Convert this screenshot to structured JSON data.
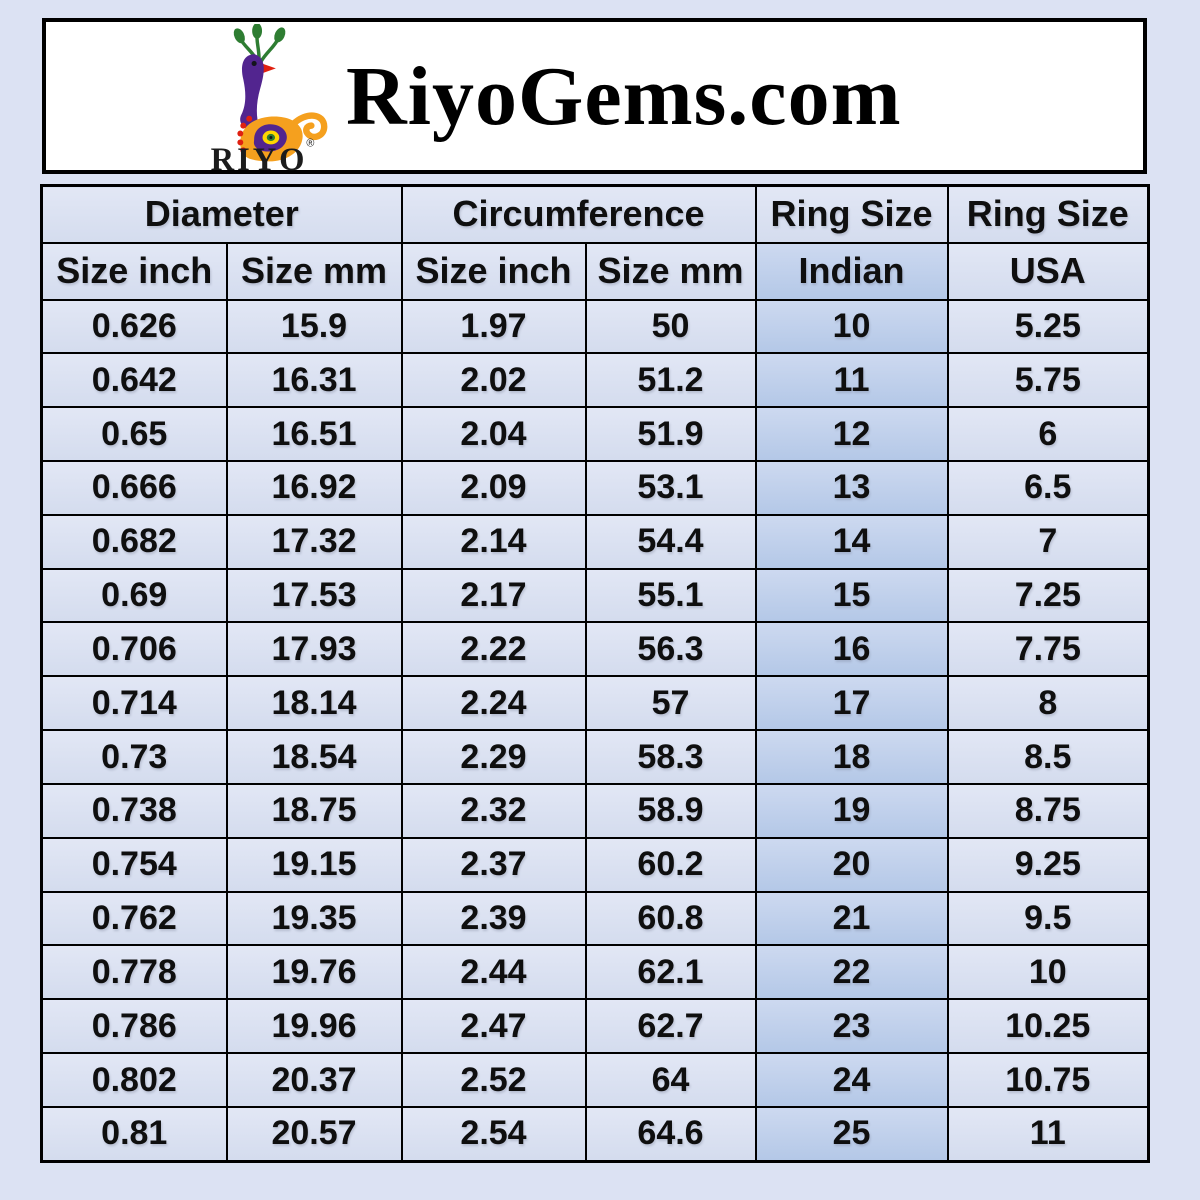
{
  "header": {
    "title": "RiyoGems.com",
    "logo_text": "RIYO",
    "registered_mark": "®",
    "logo_icon": "peacock-icon",
    "logo_colors": {
      "crest_green": "#2e7d32",
      "neck_purple": "#52258f",
      "body_orange": "#f5a01e",
      "beak_red": "#e02010",
      "eye_yellow": "#ffd700"
    }
  },
  "table": {
    "group_headers": [
      {
        "label": "Diameter",
        "colspan": 2
      },
      {
        "label": "Circumference",
        "colspan": 2
      },
      {
        "label": "Ring Size",
        "colspan": 1
      },
      {
        "label": "Ring Size",
        "colspan": 1
      }
    ],
    "column_headers": [
      "Size inch",
      "Size mm",
      "Size inch",
      "Size mm",
      "Indian",
      "USA"
    ],
    "highlight_column_index": 4,
    "rows": [
      [
        "0.626",
        "15.9",
        "1.97",
        "50",
        "10",
        "5.25"
      ],
      [
        "0.642",
        "16.31",
        "2.02",
        "51.2",
        "11",
        "5.75"
      ],
      [
        "0.65",
        "16.51",
        "2.04",
        "51.9",
        "12",
        "6"
      ],
      [
        "0.666",
        "16.92",
        "2.09",
        "53.1",
        "13",
        "6.5"
      ],
      [
        "0.682",
        "17.32",
        "2.14",
        "54.4",
        "14",
        "7"
      ],
      [
        "0.69",
        "17.53",
        "2.17",
        "55.1",
        "15",
        "7.25"
      ],
      [
        "0.706",
        "17.93",
        "2.22",
        "56.3",
        "16",
        "7.75"
      ],
      [
        "0.714",
        "18.14",
        "2.24",
        "57",
        "17",
        "8"
      ],
      [
        "0.73",
        "18.54",
        "2.29",
        "58.3",
        "18",
        "8.5"
      ],
      [
        "0.738",
        "18.75",
        "2.32",
        "58.9",
        "19",
        "8.75"
      ],
      [
        "0.754",
        "19.15",
        "2.37",
        "60.2",
        "20",
        "9.25"
      ],
      [
        "0.762",
        "19.35",
        "2.39",
        "60.8",
        "21",
        "9.5"
      ],
      [
        "0.778",
        "19.76",
        "2.44",
        "62.1",
        "22",
        "10"
      ],
      [
        "0.786",
        "19.96",
        "2.47",
        "62.7",
        "23",
        "10.25"
      ],
      [
        "0.802",
        "20.37",
        "2.52",
        "64",
        "24",
        "10.75"
      ],
      [
        "0.81",
        "20.57",
        "2.54",
        "64.6",
        "25",
        "11"
      ]
    ],
    "colors": {
      "cell_bg": "#dae1f1",
      "indian_column_bg": "#bdcfeb",
      "border": "#000000",
      "page_bg": "#dce2f3"
    }
  }
}
